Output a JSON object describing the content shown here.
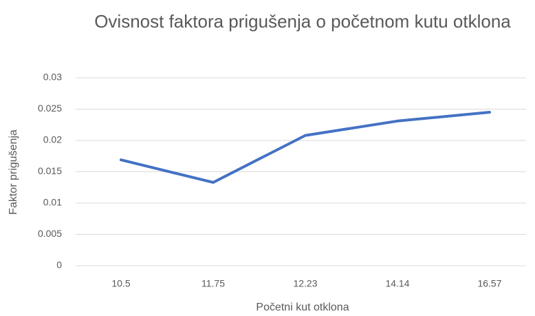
{
  "chart_data": {
    "type": "line",
    "title": "Ovisnost faktora prigušenja o početnom kutu otklona",
    "x_label": "Početni kut otklona",
    "y_label": "Faktor prigušenja",
    "categories": [
      "10.5",
      "11.75",
      "12.23",
      "14.14",
      "16.57"
    ],
    "series": [
      {
        "name": "Faktor prigušenja",
        "color": "#4472c4",
        "values": [
          0.0169,
          0.0133,
          0.0208,
          0.0231,
          0.0245
        ]
      }
    ],
    "ylim": [
      0,
      0.03
    ],
    "yticks": [
      0,
      0.005,
      0.01,
      0.015,
      0.02,
      0.025,
      0.03
    ],
    "grid": true
  }
}
